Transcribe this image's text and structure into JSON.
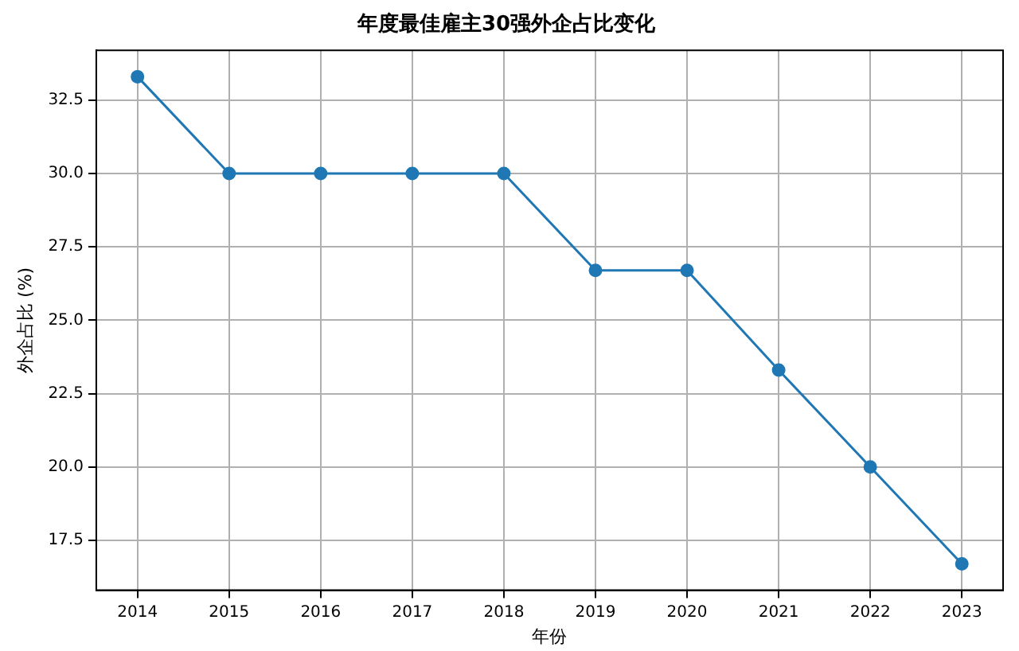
{
  "chart_data": {
    "type": "line",
    "title": "年度最佳雇主30强外企占比变化",
    "xlabel": "年份",
    "ylabel": "外企占比 (%)",
    "x": [
      2014,
      2015,
      2016,
      2017,
      2018,
      2019,
      2020,
      2021,
      2022,
      2023
    ],
    "series": [
      {
        "color": "#1f77b4",
        "values": [
          33.3,
          30,
          30,
          30,
          30,
          26.7,
          26.7,
          23.3,
          20,
          16.7
        ]
      }
    ],
    "xlim": [
      2013.55,
      2023.45
    ],
    "xticks": [
      2014,
      2015,
      2016,
      2017,
      2018,
      2019,
      2020,
      2021,
      2022,
      2023
    ],
    "ylim": [
      15.8,
      34.2
    ],
    "yticks": [
      {
        "value": 17.5,
        "label": "17.5"
      },
      {
        "value": 20,
        "label": "20.0"
      },
      {
        "value": 22.5,
        "label": "22.5"
      },
      {
        "value": 25,
        "label": "25.0"
      },
      {
        "value": 27.5,
        "label": "27.5"
      },
      {
        "value": 30,
        "label": "30.0"
      },
      {
        "value": 32.5,
        "label": "32.5"
      }
    ],
    "grid": true,
    "legend": false,
    "marker": "circle",
    "line_style": "solid"
  }
}
